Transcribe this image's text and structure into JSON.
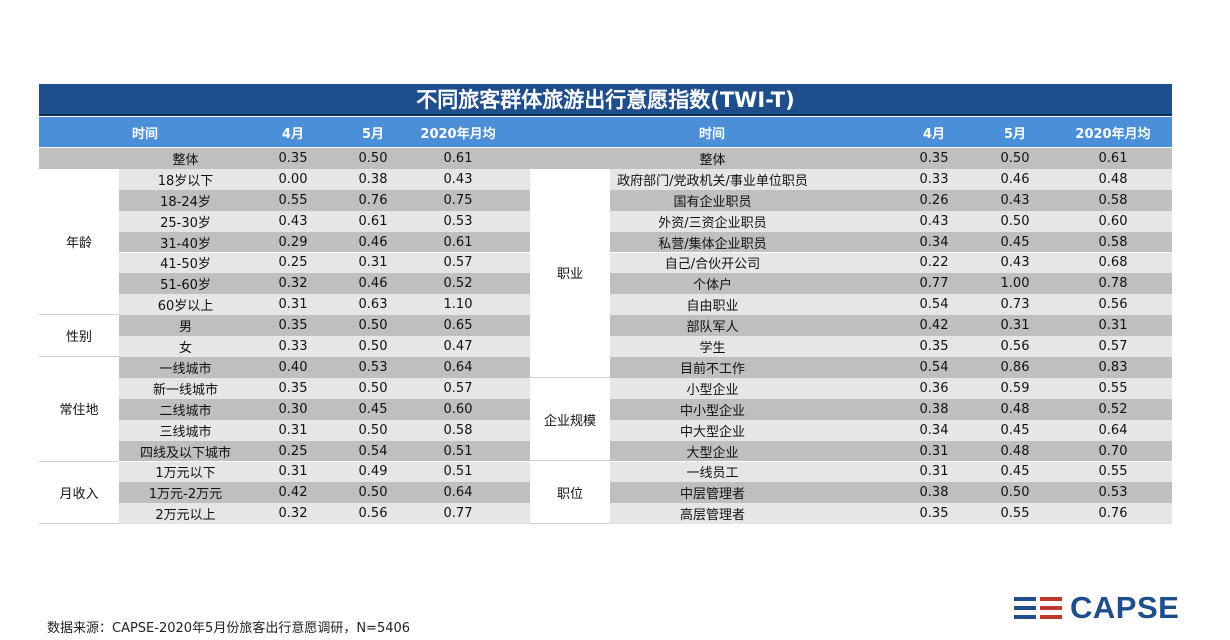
{
  "title": "不同旅客群体旅游出行意愿指数(TWI-T)",
  "headers": {
    "left": [
      "时间",
      "4月",
      "5月",
      "2020年月均"
    ],
    "right": [
      "时间",
      "4月",
      "5月",
      "2020年月均"
    ]
  },
  "left_rows": [
    {
      "label": "整体",
      "apr": "0.35",
      "may": "0.50",
      "avg": "0.61"
    },
    {
      "label": "18岁以下",
      "apr": "0.00",
      "may": "0.38",
      "avg": "0.43"
    },
    {
      "label": "18-24岁",
      "apr": "0.55",
      "may": "0.76",
      "avg": "0.75"
    },
    {
      "label": "25-30岁",
      "apr": "0.43",
      "may": "0.61",
      "avg": "0.53"
    },
    {
      "label": "31-40岁",
      "apr": "0.29",
      "may": "0.46",
      "avg": "0.61"
    },
    {
      "label": "41-50岁",
      "apr": "0.25",
      "may": "0.31",
      "avg": "0.57"
    },
    {
      "label": "51-60岁",
      "apr": "0.32",
      "may": "0.46",
      "avg": "0.52"
    },
    {
      "label": "60岁以上",
      "apr": "0.31",
      "may": "0.63",
      "avg": "1.10"
    },
    {
      "label": "男",
      "apr": "0.35",
      "may": "0.50",
      "avg": "0.65"
    },
    {
      "label": "女",
      "apr": "0.33",
      "may": "0.50",
      "avg": "0.47"
    },
    {
      "label": "一线城市",
      "apr": "0.40",
      "may": "0.53",
      "avg": "0.64"
    },
    {
      "label": "新一线城市",
      "apr": "0.35",
      "may": "0.50",
      "avg": "0.57"
    },
    {
      "label": "二线城市",
      "apr": "0.30",
      "may": "0.45",
      "avg": "0.60"
    },
    {
      "label": "三线城市",
      "apr": "0.31",
      "may": "0.50",
      "avg": "0.58"
    },
    {
      "label": "四线及以下城市",
      "apr": "0.25",
      "may": "0.54",
      "avg": "0.51"
    },
    {
      "label": "1万元以下",
      "apr": "0.31",
      "may": "0.49",
      "avg": "0.51"
    },
    {
      "label": "1万元-2万元",
      "apr": "0.42",
      "may": "0.50",
      "avg": "0.64"
    },
    {
      "label": "2万元以上",
      "apr": "0.32",
      "may": "0.56",
      "avg": "0.77"
    }
  ],
  "left_groups": [
    {
      "name": "年龄",
      "start": 1,
      "end": 7
    },
    {
      "name": "性别",
      "start": 8,
      "end": 9
    },
    {
      "name": "常住地",
      "start": 10,
      "end": 14
    },
    {
      "name": "月收入",
      "start": 15,
      "end": 17
    }
  ],
  "right_rows": [
    {
      "label": "整体",
      "apr": "0.35",
      "may": "0.50",
      "avg": "0.61"
    },
    {
      "label": "政府部门/党政机关/事业单位职员",
      "apr": "0.33",
      "may": "0.46",
      "avg": "0.48"
    },
    {
      "label": "国有企业职员",
      "apr": "0.26",
      "may": "0.43",
      "avg": "0.58"
    },
    {
      "label": "外资/三资企业职员",
      "apr": "0.43",
      "may": "0.50",
      "avg": "0.60"
    },
    {
      "label": "私营/集体企业职员",
      "apr": "0.34",
      "may": "0.45",
      "avg": "0.58"
    },
    {
      "label": "自己/合伙开公司",
      "apr": "0.22",
      "may": "0.43",
      "avg": "0.68"
    },
    {
      "label": "个体户",
      "apr": "0.77",
      "may": "1.00",
      "avg": "0.78"
    },
    {
      "label": "自由职业",
      "apr": "0.54",
      "may": "0.73",
      "avg": "0.56"
    },
    {
      "label": "部队军人",
      "apr": "0.42",
      "may": "0.31",
      "avg": "0.31"
    },
    {
      "label": "学生",
      "apr": "0.35",
      "may": "0.56",
      "avg": "0.57"
    },
    {
      "label": "目前不工作",
      "apr": "0.54",
      "may": "0.86",
      "avg": "0.83"
    },
    {
      "label": "小型企业",
      "apr": "0.36",
      "may": "0.59",
      "avg": "0.55"
    },
    {
      "label": "中小型企业",
      "apr": "0.38",
      "may": "0.48",
      "avg": "0.52"
    },
    {
      "label": "中大型企业",
      "apr": "0.34",
      "may": "0.45",
      "avg": "0.64"
    },
    {
      "label": "大型企业",
      "apr": "0.31",
      "may": "0.48",
      "avg": "0.70"
    },
    {
      "label": "一线员工",
      "apr": "0.31",
      "may": "0.45",
      "avg": "0.55"
    },
    {
      "label": "中层管理者",
      "apr": "0.38",
      "may": "0.50",
      "avg": "0.53"
    },
    {
      "label": "高层管理者",
      "apr": "0.35",
      "may": "0.55",
      "avg": "0.76"
    }
  ],
  "right_groups": [
    {
      "name": "职业",
      "start": 1,
      "end": 10
    },
    {
      "name": "企业规模",
      "start": 11,
      "end": 14
    },
    {
      "name": "职位",
      "start": 15,
      "end": 17
    }
  ],
  "source": "数据来源：CAPSE-2020年5月份旅客出行意愿调研，N=5406",
  "logo": {
    "text": "CAPSE",
    "color": "#1f4e8c",
    "accent": "#c0392b"
  },
  "colors": {
    "title_bg": "#1f4e8c",
    "header_bg": "#4a8fd8",
    "row_dark": "#bfbfbf",
    "row_light": "#e6e6e6"
  }
}
